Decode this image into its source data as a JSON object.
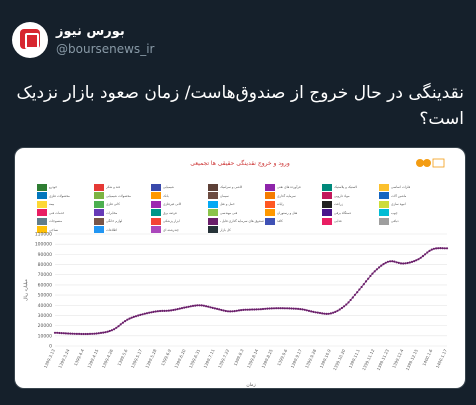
{
  "tweet": {
    "display_name": "بورس نیوز",
    "handle": "@boursenews_ir",
    "text": "نقدینگی در حال خروج از صندوق‌هاست/ زمان صعود بازار نزدیک است؟"
  },
  "chart_data": {
    "type": "line",
    "title": "ورود و خروج نقدینگی حقیقی ها تجمیعی",
    "xlabel": "زمان",
    "ylabel": "میلیارد ریال",
    "ylim": [
      0,
      110000
    ],
    "yticks": [
      0,
      10000,
      20000,
      30000,
      40000,
      50000,
      60000,
      70000,
      80000,
      90000,
      100000,
      110000
    ],
    "x": [
      "1399.3.13",
      "1399.3.24",
      "1399.4.4",
      "1399.4.15",
      "1399.4.26",
      "1399.5.6",
      "1399.5.17",
      "1399.5.28",
      "1399.6.9",
      "1399.6.20",
      "1399.6.31",
      "1399.7.11",
      "1399.7.22",
      "1399.8.3",
      "1399.8.14",
      "1399.8.25",
      "1399.9.6",
      "1399.9.17",
      "1399.9.28",
      "1399.10.9",
      "1399.10.20",
      "1399.11.1",
      "1399.11.12",
      "1399.11.23",
      "1399.12.4",
      "1399.12.15",
      "1400.1.6",
      "1400.1.17"
    ],
    "values": [
      13000,
      12200,
      11800,
      12500,
      16000,
      26000,
      31000,
      34000,
      35000,
      38000,
      40000,
      37000,
      34000,
      35500,
      36000,
      37000,
      37000,
      36000,
      33000,
      32000,
      40000,
      56000,
      73000,
      83000,
      81000,
      85000,
      95000,
      96000
    ],
    "series_color": "#6a1e6a",
    "legend_entries": [
      {
        "label": "خودرو",
        "color": "#2e7d32"
      },
      {
        "label": "قند و شکر",
        "color": "#e53935"
      },
      {
        "label": "شیمیایی",
        "color": "#3949ab"
      },
      {
        "label": "کاشی و سرامیک",
        "color": "#5d4037"
      },
      {
        "label": "فرآورده های نفتی",
        "color": "#8e24aa"
      },
      {
        "label": "لاستیک و پلاستیک",
        "color": "#00897b"
      },
      {
        "label": "فلزات اساسی",
        "color": "#fbc02d"
      },
      {
        "label": "محصولات فلزی",
        "color": "#0277bd"
      },
      {
        "label": "محصولات شیمیایی",
        "color": "#7cb342"
      },
      {
        "label": "بانک",
        "color": "#ff9800"
      },
      {
        "label": "سیمان",
        "color": "#6d4c41"
      },
      {
        "label": "سرمایه گذاری",
        "color": "#f57c00"
      },
      {
        "label": "مواد دارویی",
        "color": "#c2185b"
      },
      {
        "label": "ماشین آلات",
        "color": "#1565c0"
      },
      {
        "label": "بیمه",
        "color": "#fdd835"
      },
      {
        "label": "کانی فلزی",
        "color": "#4caf50"
      },
      {
        "label": "کانی غیرفلزی",
        "color": "#9c27b0"
      },
      {
        "label": "حمل و نقل",
        "color": "#03a9f4"
      },
      {
        "label": "رایانه",
        "color": "#ff5722"
      },
      {
        "label": "زراعت",
        "color": "#212121"
      },
      {
        "label": "انبوه سازی",
        "color": "#cddc39"
      },
      {
        "label": "خدمات فنی",
        "color": "#e91e63"
      },
      {
        "label": "مخابرات",
        "color": "#673ab7"
      },
      {
        "label": "عرضه برق",
        "color": "#009688"
      },
      {
        "label": "فنی مهندسی",
        "color": "#8bc34a"
      },
      {
        "label": "هتل و رستوران",
        "color": "#ff9800"
      },
      {
        "label": "دستگاه برقی",
        "color": "#4a148c"
      },
      {
        "label": "چوب",
        "color": "#00bcd4"
      },
      {
        "label": "منسوجات",
        "color": "#607d8b"
      },
      {
        "label": "لوازم خانگی",
        "color": "#795548"
      },
      {
        "label": "ابزار پزشکی",
        "color": "#f44336"
      },
      {
        "label": "صندوق های سرمایه گذاری قابل معامله",
        "color": "#6a1e6a"
      },
      {
        "label": "کاغذ",
        "color": "#3f51b5"
      },
      {
        "label": "غذایی",
        "color": "#e91e63"
      },
      {
        "label": "دباغی",
        "color": "#9e9e9e"
      },
      {
        "label": "نساجی",
        "color": "#ffc107"
      },
      {
        "label": "اطلاعات",
        "color": "#2196f3"
      },
      {
        "label": "چندرشته ای",
        "color": "#ab47bc"
      },
      {
        "label": "کل بازار",
        "color": "#263238"
      }
    ]
  }
}
